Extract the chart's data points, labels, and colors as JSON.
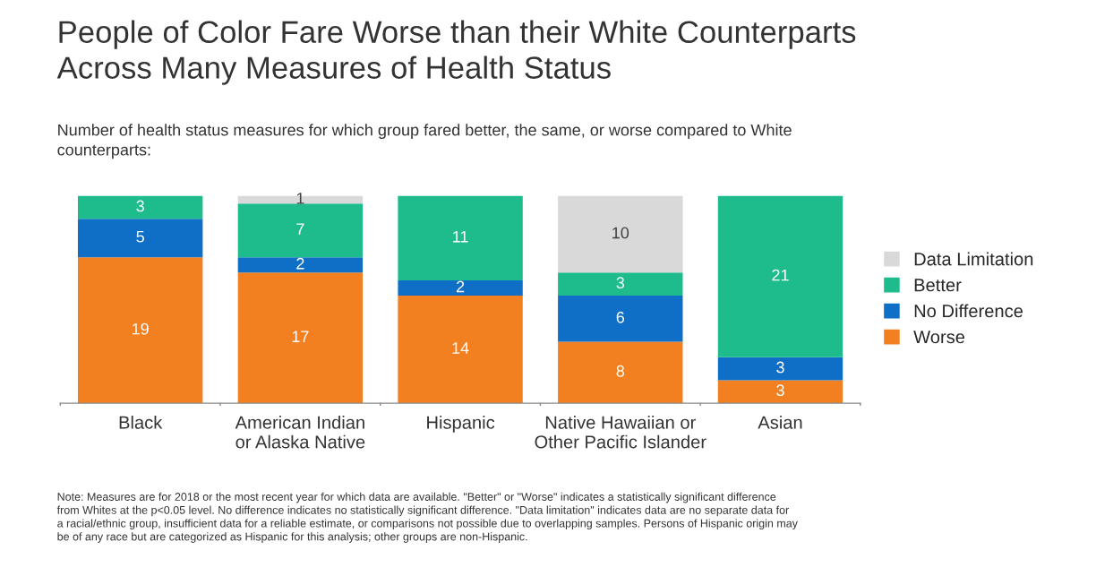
{
  "chart_data": {
    "type": "bar",
    "stacked": true,
    "data_labels": true,
    "legend": "right",
    "grid": false,
    "title": "People of Color Fare Worse than their White Counterparts\nAcross Many Measures of Health Status",
    "subtitle": "Number of health status measures for which group fared better, the same, or worse compared to White\ncounterparts:",
    "categories": [
      "Black",
      "American Indian\nor Alaska Native",
      "Hispanic",
      "Native Hawaiian or\nOther Pacific Islander",
      "Asian"
    ],
    "series": [
      {
        "name": "Worse",
        "color": "#f28021",
        "values": [
          19,
          17,
          14,
          8,
          3
        ]
      },
      {
        "name": "No Difference",
        "color": "#0f6fc6",
        "values": [
          5,
          2,
          2,
          6,
          3
        ]
      },
      {
        "name": "Better",
        "color": "#1ebc8c",
        "values": [
          3,
          7,
          11,
          3,
          21
        ]
      },
      {
        "name": "Data Limitation",
        "color": "#d9d9d9",
        "values": [
          null,
          1,
          null,
          10,
          null
        ]
      }
    ],
    "annotations": [
      "Note: Measures are for 2018 or the most recent year for which data are available. \"Better\" or \"Worse\" indicates a statistically significant difference\nfrom Whites at the p<0.05 level. No difference indicates no statistically significant difference. \"Data limitation\" indicates data are no separate data for\na racial/ethnic group, insufficient data for a reliable estimate, or comparisons not possible due to overlapping samples. Persons of Hispanic origin may\nbe of any race but are categorized as Hispanic for this analysis; other groups are non-Hispanic."
    ]
  }
}
